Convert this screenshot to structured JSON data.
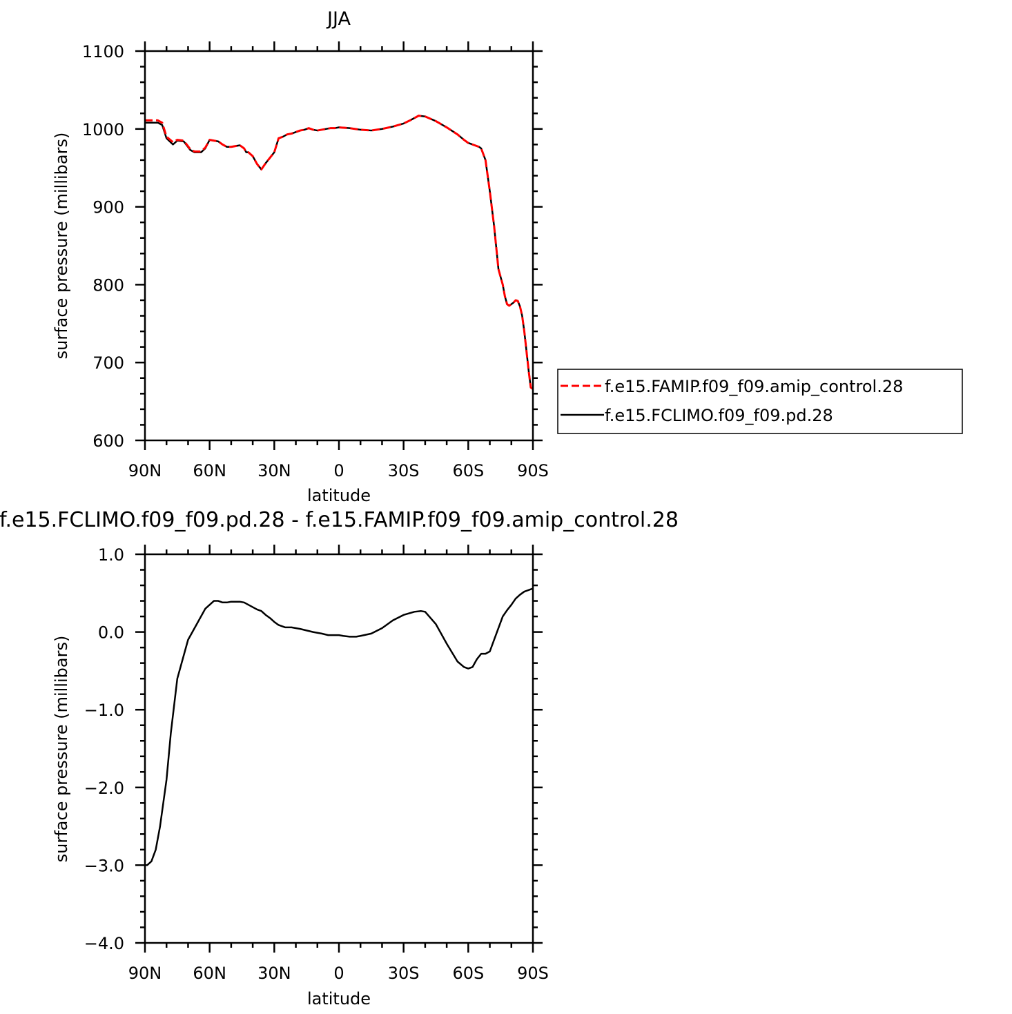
{
  "colors": {
    "axis": "#000000",
    "series_solid": "#000000",
    "series_dashed": "#ff0000"
  },
  "chart_data": [
    {
      "type": "line",
      "title": "JJA",
      "xlabel": "latitude",
      "ylabel": "surface pressure (millibars)",
      "xlim": [
        90,
        -90
      ],
      "ylim": [
        600,
        1100
      ],
      "x_ticks": [
        {
          "value": 90,
          "label": "90N"
        },
        {
          "value": 60,
          "label": "60N"
        },
        {
          "value": 30,
          "label": "30N"
        },
        {
          "value": 0,
          "label": "0"
        },
        {
          "value": -30,
          "label": "30S"
        },
        {
          "value": -60,
          "label": "60S"
        },
        {
          "value": -90,
          "label": "90S"
        }
      ],
      "y_ticks": [
        {
          "value": 600,
          "label": "600"
        },
        {
          "value": 700,
          "label": "700"
        },
        {
          "value": 800,
          "label": "800"
        },
        {
          "value": 900,
          "label": "900"
        },
        {
          "value": 1000,
          "label": "1000"
        },
        {
          "value": 1100,
          "label": "1100"
        }
      ],
      "legend_position": "right",
      "series": [
        {
          "name": "f.e15.FAMIP.f09_f09.amip_control.28",
          "color": "#ff0000",
          "dash": "dashed",
          "x": [
            90,
            84,
            82,
            80,
            77,
            75,
            72,
            69,
            67,
            64,
            62,
            60,
            58,
            56,
            54,
            52,
            50,
            48,
            46,
            44,
            43,
            42,
            40,
            38,
            36,
            34,
            30,
            28,
            26,
            24,
            22,
            20,
            18,
            16,
            14,
            12,
            10,
            8,
            6,
            4,
            2,
            0,
            -5,
            -10,
            -15,
            -20,
            -25,
            -30,
            -33,
            -35,
            -37,
            -40,
            -45,
            -50,
            -55,
            -58,
            -60,
            -62,
            -63,
            -64,
            -65,
            -66,
            -68,
            -70,
            -72,
            -74,
            -76,
            -77,
            -78,
            -79,
            -80,
            -81,
            -82,
            -83,
            -84,
            -85,
            -86,
            -87,
            -88,
            -89,
            -90
          ],
          "values": [
            1011,
            1011,
            1008,
            990,
            983,
            986,
            985,
            974,
            971,
            971,
            976,
            986,
            985,
            984,
            980,
            977,
            977,
            978,
            979,
            975,
            970,
            970,
            965,
            955,
            948,
            956,
            970,
            988,
            990,
            993,
            994,
            996,
            998,
            999,
            1001,
            999,
            998,
            999,
            1000,
            1001,
            1001,
            1002,
            1001,
            999,
            998,
            1000,
            1003,
            1007,
            1011,
            1014,
            1017,
            1016,
            1010,
            1002,
            993,
            986,
            982,
            980,
            979,
            978,
            977,
            975,
            960,
            920,
            875,
            820,
            800,
            785,
            775,
            773,
            775,
            777,
            780,
            779,
            772,
            760,
            740,
            715,
            690,
            668,
            666
          ]
        },
        {
          "name": "f.e15.FCLIMO.f09_f09.pd.28",
          "color": "#000000",
          "dash": "solid",
          "x": [
            90,
            84,
            82,
            80,
            77,
            75,
            72,
            69,
            67,
            64,
            62,
            60,
            58,
            56,
            54,
            52,
            50,
            48,
            46,
            44,
            43,
            42,
            40,
            38,
            36,
            34,
            30,
            28,
            26,
            24,
            22,
            20,
            18,
            16,
            14,
            12,
            10,
            8,
            6,
            4,
            2,
            0,
            -5,
            -10,
            -15,
            -20,
            -25,
            -30,
            -33,
            -35,
            -37,
            -40,
            -45,
            -50,
            -55,
            -58,
            -60,
            -62,
            -63,
            -64,
            -65,
            -66,
            -68,
            -70,
            -72,
            -74,
            -76,
            -77,
            -78,
            -79,
            -80,
            -81,
            -82,
            -83,
            -84,
            -85,
            -86,
            -87,
            -88,
            -89,
            -90
          ],
          "values": [
            1008,
            1008,
            1005,
            988,
            980,
            985,
            984,
            973,
            970,
            970,
            975,
            986,
            985,
            984,
            980,
            977,
            977,
            978,
            979,
            975,
            970,
            970,
            965,
            955,
            948,
            956,
            970,
            988,
            990,
            993,
            994,
            996,
            998,
            999,
            1001,
            999,
            998,
            999,
            1000,
            1001,
            1001,
            1002,
            1001,
            999,
            998,
            1000,
            1003,
            1007,
            1011,
            1014,
            1017,
            1016,
            1010,
            1002,
            993,
            986,
            982,
            980,
            979,
            978,
            977,
            975,
            960,
            920,
            875,
            820,
            800,
            785,
            775,
            773,
            775,
            777,
            780,
            779,
            772,
            760,
            740,
            715,
            690,
            668,
            666
          ]
        }
      ]
    },
    {
      "type": "line",
      "title": "f.e15.FCLIMO.f09_f09.pd.28 - f.e15.FAMIP.f09_f09.amip_control.28",
      "xlabel": "latitude",
      "ylabel": "surface pressure (millibars)",
      "xlim": [
        90,
        -90
      ],
      "ylim": [
        -4.0,
        1.0
      ],
      "x_ticks": [
        {
          "value": 90,
          "label": "90N"
        },
        {
          "value": 60,
          "label": "60N"
        },
        {
          "value": 30,
          "label": "30N"
        },
        {
          "value": 0,
          "label": "0"
        },
        {
          "value": -30,
          "label": "30S"
        },
        {
          "value": -60,
          "label": "60S"
        },
        {
          "value": -90,
          "label": "90S"
        }
      ],
      "y_ticks": [
        {
          "value": -4.0,
          "label": "−4.0"
        },
        {
          "value": -3.0,
          "label": "−3.0"
        },
        {
          "value": -2.0,
          "label": "−2.0"
        },
        {
          "value": -1.0,
          "label": "−1.0"
        },
        {
          "value": 0.0,
          "label": "0.0"
        },
        {
          "value": 1.0,
          "label": "1.0"
        }
      ],
      "series": [
        {
          "color": "#000000",
          "dash": "solid",
          "x": [
            90,
            89,
            87,
            85,
            83,
            80,
            78,
            75,
            72,
            70,
            68,
            66,
            64,
            62,
            60,
            58,
            56,
            54,
            52,
            50,
            48,
            46,
            44,
            42,
            40,
            38,
            36,
            34,
            32,
            30,
            28,
            25,
            22,
            20,
            18,
            15,
            12,
            10,
            8,
            5,
            2,
            0,
            -2,
            -5,
            -8,
            -10,
            -15,
            -20,
            -25,
            -30,
            -35,
            -38,
            -40,
            -45,
            -50,
            -55,
            -58,
            -60,
            -62,
            -64,
            -66,
            -68,
            -70,
            -72,
            -74,
            -76,
            -78,
            -80,
            -82,
            -84,
            -86,
            -88,
            -90
          ],
          "values": [
            -3.0,
            -3.0,
            -2.95,
            -2.8,
            -2.5,
            -1.9,
            -1.3,
            -0.6,
            -0.3,
            -0.1,
            0.0,
            0.1,
            0.2,
            0.3,
            0.35,
            0.4,
            0.4,
            0.38,
            0.38,
            0.39,
            0.39,
            0.39,
            0.38,
            0.35,
            0.32,
            0.29,
            0.27,
            0.22,
            0.18,
            0.13,
            0.09,
            0.06,
            0.06,
            0.05,
            0.04,
            0.02,
            0.0,
            -0.01,
            -0.02,
            -0.04,
            -0.04,
            -0.04,
            -0.05,
            -0.06,
            -0.06,
            -0.05,
            -0.02,
            0.05,
            0.15,
            0.22,
            0.26,
            0.27,
            0.26,
            0.1,
            -0.15,
            -0.38,
            -0.45,
            -0.47,
            -0.45,
            -0.35,
            -0.28,
            -0.28,
            -0.25,
            -0.1,
            0.05,
            0.2,
            0.28,
            0.35,
            0.43,
            0.48,
            0.52,
            0.54,
            0.56
          ]
        }
      ]
    }
  ]
}
